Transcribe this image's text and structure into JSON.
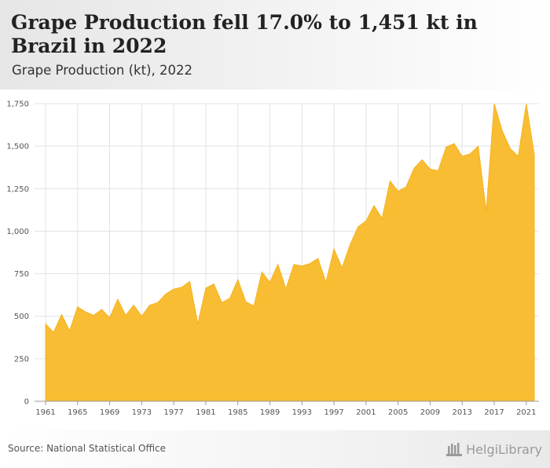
{
  "header": {
    "title": "Grape Production fell 17.0% to 1,451 kt in Brazil in 2022",
    "subtitle": "Grape Production (kt), 2022"
  },
  "footer": {
    "source": "Source: National Statistical Office",
    "logo_text": "HelgiLibrary"
  },
  "colors": {
    "area_fill": "#f9bd33",
    "area_stroke": "#f5b21e",
    "grid": "#e3e3e3",
    "axis": "#999999"
  },
  "chart_data": {
    "type": "area",
    "title": "Grape Production (kt), 2022",
    "xlabel": "",
    "ylabel": "",
    "ylim": [
      0,
      1750
    ],
    "yticks": [
      0,
      250,
      500,
      750,
      1000,
      1250,
      1500,
      1750
    ],
    "ytick_labels": [
      "0",
      "250",
      "500",
      "750",
      "1,000",
      "1,250",
      "1,500",
      "1,750"
    ],
    "xticks": [
      1961,
      1965,
      1969,
      1973,
      1977,
      1981,
      1985,
      1989,
      1993,
      1997,
      2001,
      2005,
      2009,
      2013,
      2017,
      2021
    ],
    "grid": true,
    "x": [
      1961,
      1962,
      1963,
      1964,
      1965,
      1966,
      1967,
      1968,
      1969,
      1970,
      1971,
      1972,
      1973,
      1974,
      1975,
      1976,
      1977,
      1978,
      1979,
      1980,
      1981,
      1982,
      1983,
      1984,
      1985,
      1986,
      1987,
      1988,
      1989,
      1990,
      1991,
      1992,
      1993,
      1994,
      1995,
      1996,
      1997,
      1998,
      1999,
      2000,
      2001,
      2002,
      2003,
      2004,
      2005,
      2006,
      2007,
      2008,
      2009,
      2010,
      2011,
      2012,
      2013,
      2014,
      2015,
      2016,
      2017,
      2018,
      2019,
      2020,
      2021,
      2022
    ],
    "values": [
      455,
      405,
      510,
      415,
      555,
      525,
      505,
      540,
      490,
      600,
      505,
      565,
      500,
      565,
      580,
      630,
      660,
      670,
      705,
      455,
      665,
      690,
      580,
      605,
      715,
      585,
      560,
      760,
      700,
      805,
      660,
      805,
      795,
      810,
      840,
      700,
      895,
      785,
      920,
      1025,
      1060,
      1150,
      1075,
      1295,
      1235,
      1260,
      1370,
      1420,
      1365,
      1355,
      1495,
      1515,
      1440,
      1455,
      1500,
      1115,
      1750,
      1590,
      1485,
      1440,
      1750,
      1451
    ]
  }
}
